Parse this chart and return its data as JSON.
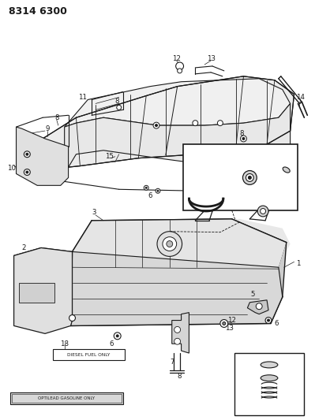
{
  "title": "8314 6300",
  "bg": "#ffffff",
  "lc": "#1a1a1a",
  "tc": "#1a1a1a",
  "fig_w": 3.99,
  "fig_h": 5.33,
  "dpi": 100,
  "title_fs": 9,
  "num_fs": 6.2
}
